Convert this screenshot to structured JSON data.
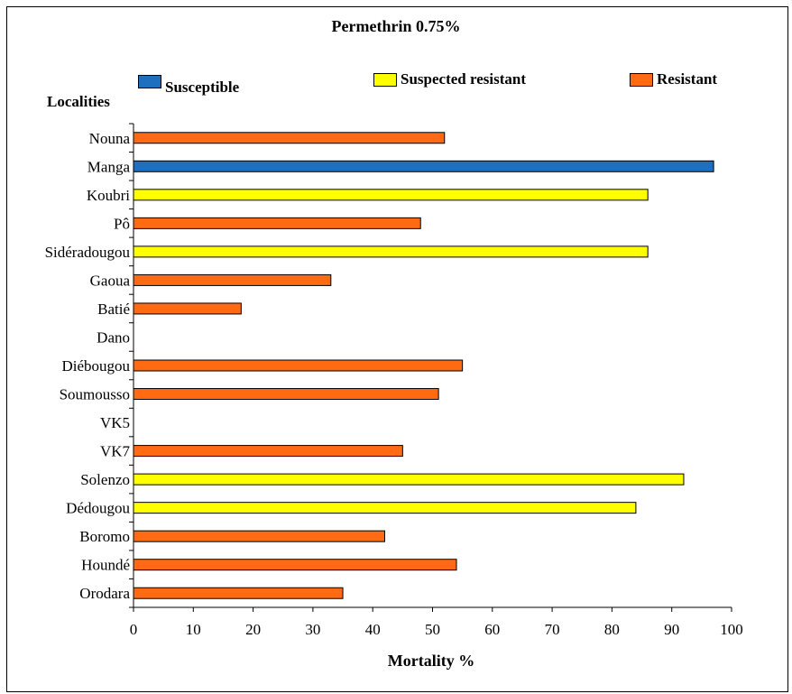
{
  "chart_data": {
    "type": "bar",
    "orientation": "horizontal",
    "title": "Permethrin 0.75%",
    "ylabel": "Localities",
    "xlabel": "Mortality %",
    "xlim": [
      0,
      100
    ],
    "x_ticks": [
      "0",
      "10",
      "20",
      "30",
      "40",
      "50",
      "60",
      "70",
      "80",
      "90",
      "100"
    ],
    "grid": false,
    "legend_placement": "top",
    "legend": [
      {
        "name": "Susceptible",
        "color": "#1f6fbf"
      },
      {
        "name": "Suspected resistant",
        "color": "#ffff00"
      },
      {
        "name": "Resistant",
        "color": "#ff6a13"
      }
    ],
    "categories": [
      "Nouna",
      "Manga",
      "Koubri",
      "Pô",
      "Sidéradougou",
      "Gaoua",
      "Batié",
      "Dano",
      "Diébougou",
      "Soumousso",
      "VK5",
      "VK7",
      "Solenzo",
      "Dédougou",
      "Boromo",
      "Houndé",
      "Orodara"
    ],
    "values": [
      52,
      97,
      86,
      48,
      86,
      33,
      18,
      null,
      55,
      51,
      null,
      45,
      92,
      84,
      42,
      54,
      35
    ],
    "status": [
      "Resistant",
      "Susceptible",
      "Suspected resistant",
      "Resistant",
      "Suspected resistant",
      "Resistant",
      "Resistant",
      null,
      "Resistant",
      "Resistant",
      null,
      "Resistant",
      "Suspected resistant",
      "Suspected resistant",
      "Resistant",
      "Resistant",
      "Resistant"
    ]
  }
}
